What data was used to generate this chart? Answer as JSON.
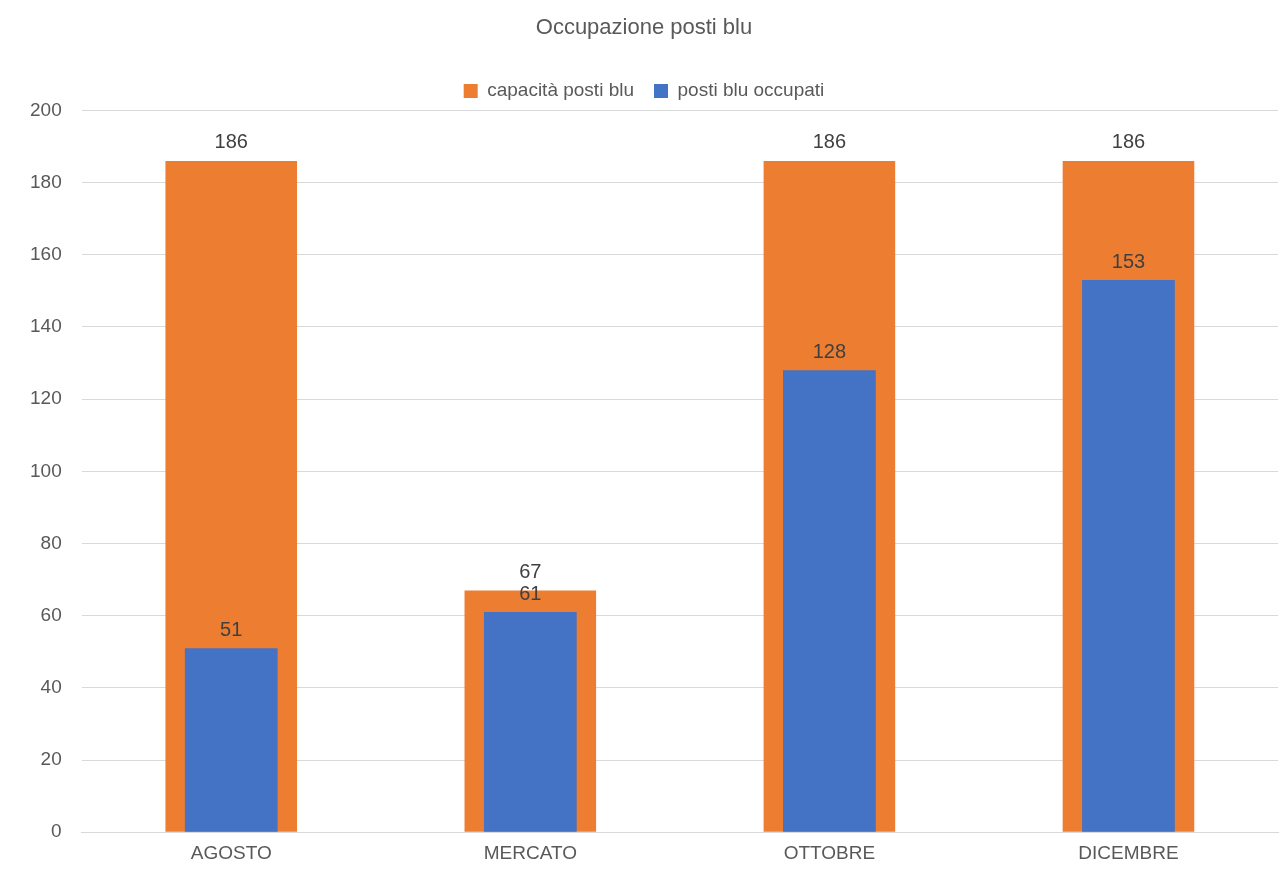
{
  "chart_data": {
    "type": "bar",
    "title": "Occupazione posti blu",
    "categories": [
      "AGOSTO",
      "MERCATO",
      "OTTOBRE",
      "DICEMBRE"
    ],
    "series": [
      {
        "name": "capacità posti blu",
        "color": "#ed7d31",
        "values": [
          186,
          67,
          186,
          186
        ]
      },
      {
        "name": "posti blu occupati",
        "color": "#4472c4",
        "values": [
          51,
          61,
          128,
          153
        ]
      }
    ],
    "ylim": [
      0,
      200
    ],
    "yticks": [
      0,
      20,
      40,
      60,
      80,
      100,
      120,
      140,
      160,
      180,
      200
    ],
    "grid": "y",
    "legend": "top",
    "data_labels": true
  }
}
